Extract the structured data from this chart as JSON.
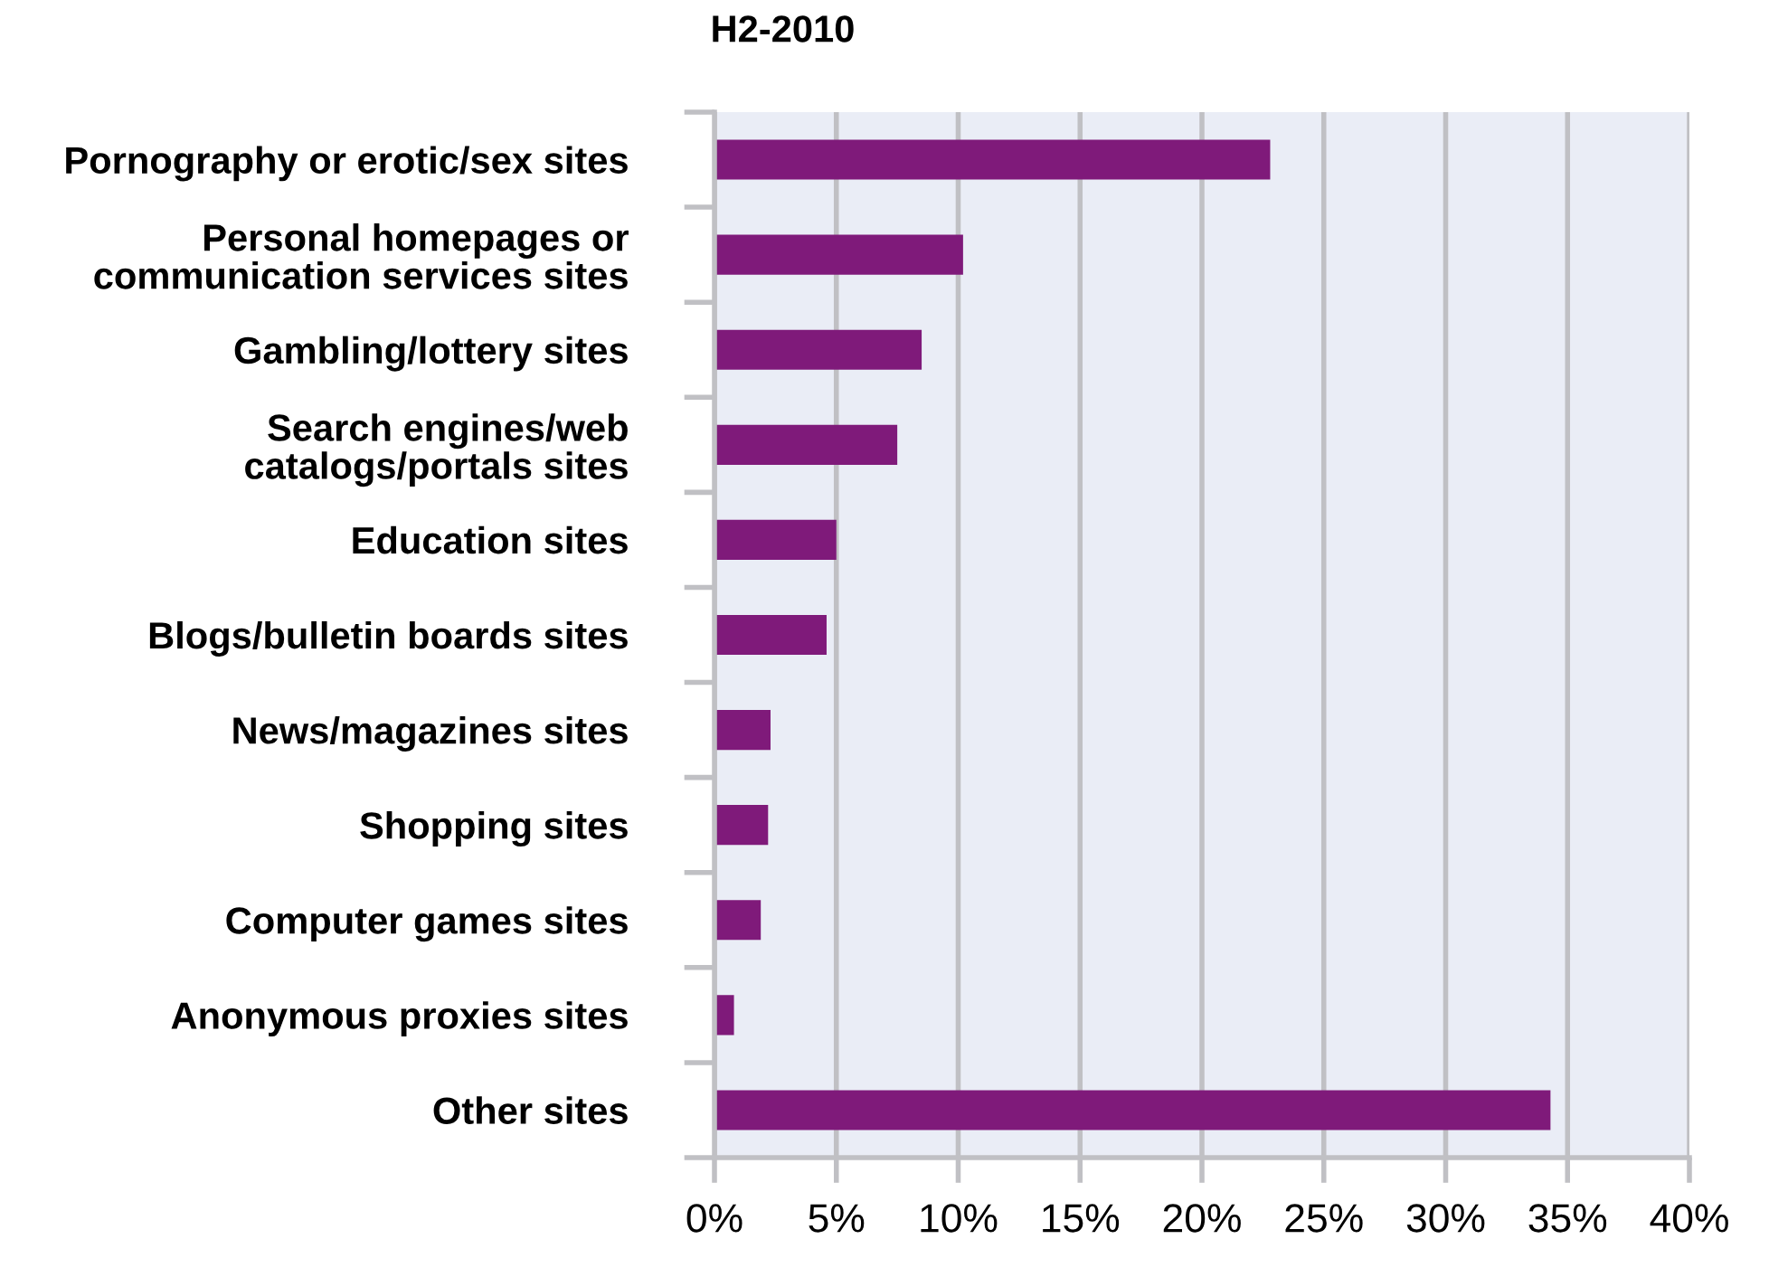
{
  "chart_data": {
    "type": "bar",
    "orientation": "horizontal",
    "title": "H2-2010",
    "categories": [
      "Pornography or erotic/sex sites",
      "Personal homepages or\ncommunication services sites",
      "Gambling/lottery sites",
      "Search engines/web\ncatalogs/portals sites",
      "Education sites",
      "Blogs/bulletin boards sites",
      "News/magazines sites",
      "Shopping sites",
      "Computer games sites",
      "Anonymous proxies sites",
      "Other sites"
    ],
    "values": [
      22.8,
      10.2,
      8.5,
      7.5,
      5.0,
      4.6,
      2.3,
      2.2,
      1.9,
      0.8,
      34.3
    ],
    "color": "#7f1a7a",
    "xlim": [
      0,
      40
    ],
    "xticks": [
      {
        "value": 0,
        "label": "0%"
      },
      {
        "value": 5,
        "label": "5%"
      },
      {
        "value": 10,
        "label": "10%"
      },
      {
        "value": 15,
        "label": "15%"
      },
      {
        "value": 20,
        "label": "20%"
      },
      {
        "value": 25,
        "label": "25%"
      },
      {
        "value": 30,
        "label": "30%"
      },
      {
        "value": 35,
        "label": "35%"
      },
      {
        "value": 40,
        "label": "40%"
      }
    ],
    "grid": "x"
  }
}
